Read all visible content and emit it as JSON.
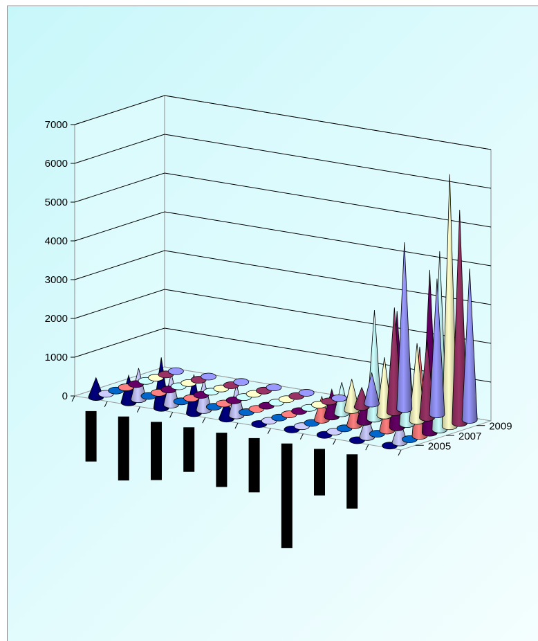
{
  "chart_data": {
    "type": "3d-cone",
    "title": "",
    "xlabel": "",
    "ylabel": "",
    "zlabel": "",
    "zlim": [
      0,
      7000
    ],
    "z_ticks": [
      "0",
      "1000",
      "2000",
      "3000",
      "4000",
      "5000",
      "6000",
      "7000"
    ],
    "depth_ticks": [
      "2005",
      "2007",
      "2009"
    ],
    "categories": [
      "",
      "",
      "",
      "",
      "",
      "",
      "",
      "",
      "",
      ""
    ],
    "gridlines": true,
    "legend": "none",
    "series": [
      {
        "values": [
          0,
          0,
          0,
          0,
          0,
          0,
          800,
          4300,
          3500,
          3900
        ],
        "color": "#9999ff"
      },
      {
        "values": [
          0,
          0,
          0,
          0,
          0,
          30,
          500,
          2700,
          2000,
          5500
        ],
        "color": "#993366"
      },
      {
        "values": [
          0,
          0,
          0,
          0,
          20,
          10,
          800,
          1500,
          2000,
          6500
        ],
        "color": "#ffffcc"
      },
      {
        "values": [
          0,
          0,
          0,
          10,
          0,
          0,
          800,
          2800,
          2500,
          4600
        ],
        "color": "#ccffff"
      },
      {
        "values": [
          0,
          0,
          0,
          0,
          20,
          0,
          700,
          700,
          3000,
          4200
        ],
        "color": "#660066"
      },
      {
        "values": [
          0,
          0,
          0,
          20,
          20,
          30,
          600,
          700,
          800,
          2300
        ],
        "color": "#ff8080"
      },
      {
        "values": [
          0,
          0,
          0,
          10,
          10,
          0,
          30,
          10,
          30,
          60
        ],
        "color": "#0066cc"
      },
      {
        "values": [
          0,
          800,
          800,
          800,
          800,
          40,
          30,
          20,
          600,
          600
        ],
        "color": "#ccccff"
      },
      {
        "values": [
          500,
          700,
          1300,
          1000,
          500,
          0,
          0,
          0,
          20,
          30
        ],
        "color": "#000080"
      }
    ],
    "lower_values": [
      -1300,
      -1650,
      -1500,
      -1150,
      -1400,
      -1400,
      -2700,
      -1200,
      -1400
    ]
  }
}
